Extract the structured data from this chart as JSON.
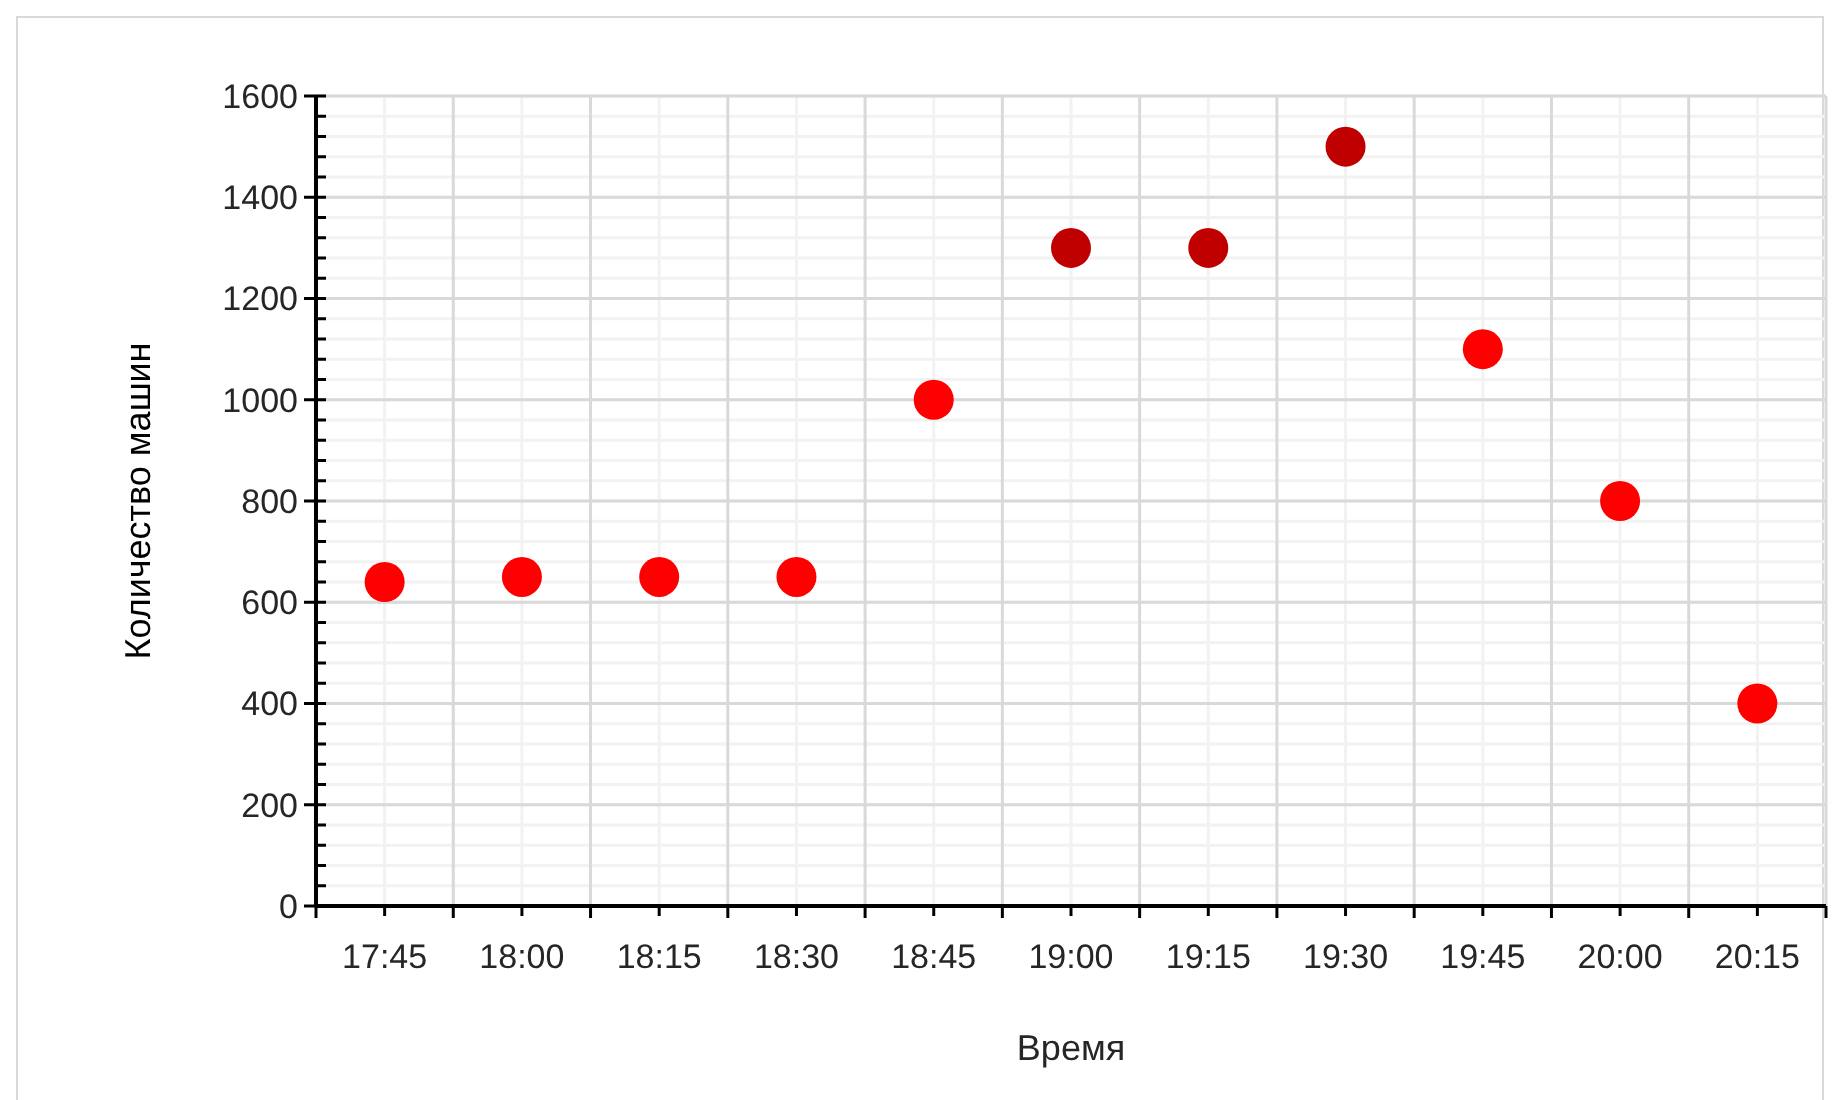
{
  "chart_data": {
    "type": "scatter",
    "xlabel": "Время",
    "ylabel": "Количество машин",
    "categories": [
      "17:45",
      "18:00",
      "18:15",
      "18:30",
      "18:45",
      "19:00",
      "19:15",
      "19:30",
      "19:45",
      "20:00",
      "20:15"
    ],
    "values": [
      640,
      650,
      650,
      650,
      1000,
      1300,
      1300,
      1500,
      1100,
      800,
      400
    ],
    "colors": [
      "#ff0000",
      "#ff0000",
      "#ff0000",
      "#ff0000",
      "#ff0000",
      "#c00000",
      "#c00000",
      "#c00000",
      "#ff0000",
      "#ff0000",
      "#ff0000"
    ],
    "ylim": [
      0,
      1600
    ],
    "yticks": [
      0,
      200,
      400,
      600,
      800,
      1000,
      1200,
      1400,
      1600
    ],
    "grid": true,
    "marker": "circle"
  }
}
